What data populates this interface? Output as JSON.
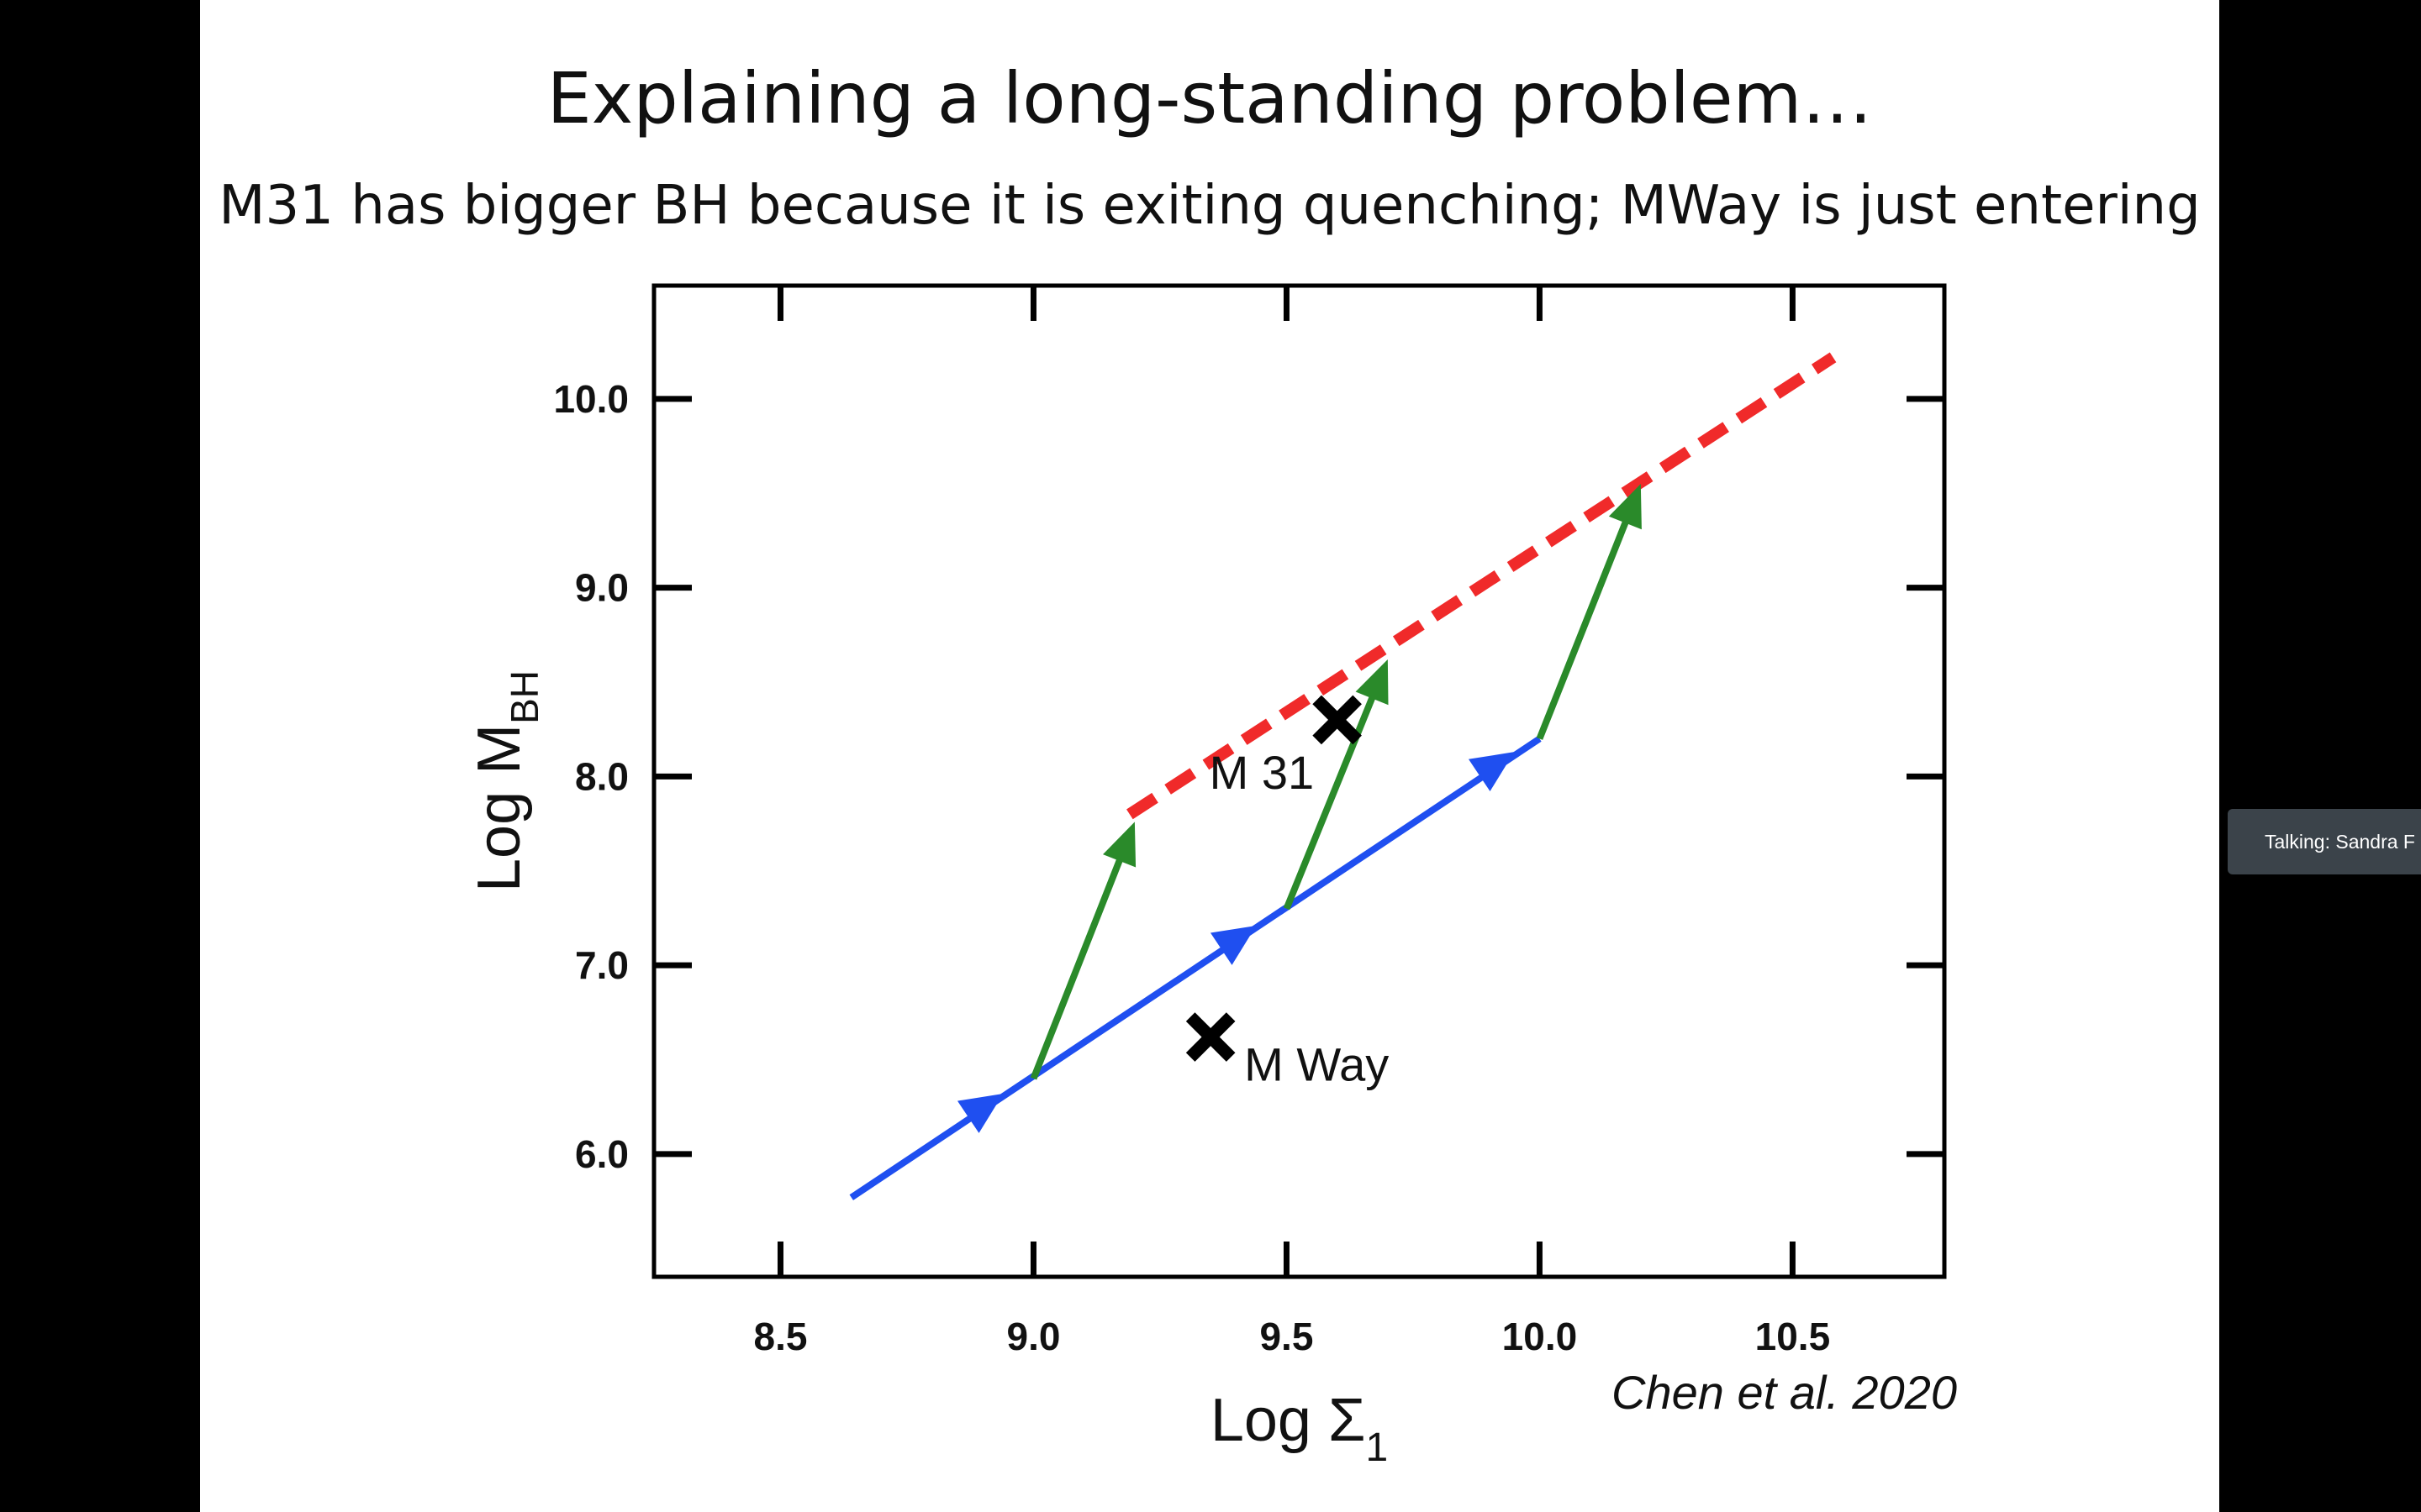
{
  "slide": {
    "title": "Explaining a long-standing problem…",
    "subtitle": "M31 has bigger BH because it is exiting quenching; MWay is just entering",
    "citation": "Chen et al. 2020"
  },
  "talking_badge": {
    "text": "Talking: Sandra F"
  },
  "chart_data": {
    "type": "line",
    "xlabel": "Log Σ",
    "xlabel_sub": "1",
    "ylabel": "Log M",
    "ylabel_sub": "BH",
    "xlim": [
      8.25,
      10.8
    ],
    "ylim": [
      5.35,
      10.6
    ],
    "x_ticks": [
      "8.5",
      "9.0",
      "9.5",
      "10.0",
      "10.5"
    ],
    "x_tick_values": [
      8.5,
      9.0,
      9.5,
      10.0,
      10.5
    ],
    "y_ticks": [
      "6.0",
      "7.0",
      "8.0",
      "9.0",
      "10.0"
    ],
    "y_tick_values": [
      6.0,
      7.0,
      8.0,
      9.0,
      10.0
    ],
    "colors": {
      "blue": "#1f4ff0",
      "green": "#2a8a2a",
      "red": "#f02a2a",
      "marker": "#000000"
    },
    "series": [
      {
        "style": "solid",
        "color": "blue",
        "points": [
          [
            8.64,
            5.77
          ],
          [
            10.0,
            8.2
          ]
        ]
      },
      {
        "style": "dashed",
        "color": "red",
        "points": [
          [
            9.19,
            7.8
          ],
          [
            10.58,
            10.22
          ]
        ]
      }
    ],
    "blue_arrowheads": [
      [
        8.94,
        6.32
      ],
      [
        9.44,
        7.21
      ],
      [
        9.95,
        8.13
      ]
    ],
    "green_arrows": [
      {
        "from": [
          9.0,
          6.4
        ],
        "to": [
          9.2,
          7.76
        ]
      },
      {
        "from": [
          9.5,
          7.3
        ],
        "to": [
          9.7,
          8.62
        ]
      },
      {
        "from": [
          10.0,
          8.2
        ],
        "to": [
          10.2,
          9.55
        ]
      }
    ],
    "markers": [
      {
        "label": "M 31",
        "x": 9.6,
        "y": 8.3
      },
      {
        "label": "M Way",
        "x": 9.35,
        "y": 6.62
      }
    ]
  }
}
